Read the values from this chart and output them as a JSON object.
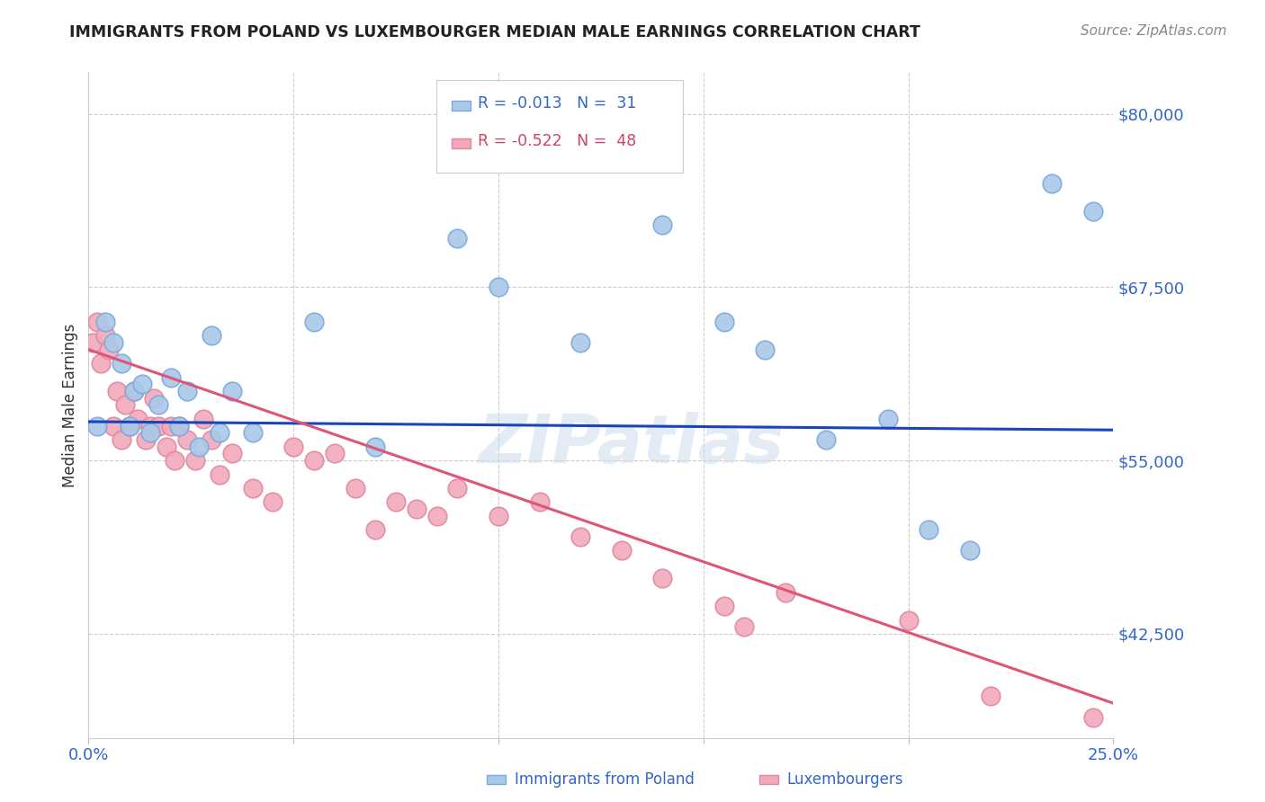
{
  "title": "IMMIGRANTS FROM POLAND VS LUXEMBOURGER MEDIAN MALE EARNINGS CORRELATION CHART",
  "source": "Source: ZipAtlas.com",
  "ylabel": "Median Male Earnings",
  "xlim": [
    0.0,
    25.0
  ],
  "ylim": [
    35000,
    83000
  ],
  "yticks": [
    42500,
    55000,
    67500,
    80000
  ],
  "ytick_labels": [
    "$42,500",
    "$55,000",
    "$67,500",
    "$80,000"
  ],
  "xticks": [
    0.0,
    5.0,
    10.0,
    15.0,
    20.0,
    25.0
  ],
  "xtick_labels": [
    "0.0%",
    "",
    "",
    "",
    "",
    "25.0%"
  ],
  "legend1_R": "R = -0.013",
  "legend1_N": "N =  31",
  "legend2_R": "R = -0.522",
  "legend2_N": "N =  48",
  "blue_color": "#aac8e8",
  "pink_color": "#f2aabb",
  "blue_edge_color": "#7aaadd",
  "pink_edge_color": "#e088a0",
  "blue_line_color": "#1a44bb",
  "pink_line_color": "#e05575",
  "watermark": "ZIPatlas",
  "blue_x": [
    0.2,
    0.4,
    0.6,
    0.8,
    1.0,
    1.1,
    1.3,
    1.5,
    1.7,
    2.0,
    2.2,
    2.4,
    2.7,
    3.0,
    3.2,
    3.5,
    4.0,
    5.5,
    7.0,
    9.0,
    10.0,
    12.0,
    14.0,
    15.5,
    16.5,
    18.0,
    19.5,
    20.5,
    21.5,
    23.5,
    24.5
  ],
  "blue_y": [
    57500,
    65000,
    63500,
    62000,
    57500,
    60000,
    60500,
    57000,
    59000,
    61000,
    57500,
    60000,
    56000,
    64000,
    57000,
    60000,
    57000,
    65000,
    56000,
    71000,
    67500,
    63500,
    72000,
    65000,
    63000,
    56500,
    58000,
    50000,
    48500,
    75000,
    73000
  ],
  "pink_x": [
    0.1,
    0.2,
    0.3,
    0.4,
    0.5,
    0.6,
    0.7,
    0.8,
    0.9,
    1.0,
    1.1,
    1.2,
    1.4,
    1.5,
    1.6,
    1.7,
    1.9,
    2.0,
    2.1,
    2.2,
    2.4,
    2.6,
    2.8,
    3.0,
    3.2,
    3.5,
    4.0,
    4.5,
    5.0,
    5.5,
    6.0,
    6.5,
    7.0,
    7.5,
    8.0,
    8.5,
    9.0,
    10.0,
    11.0,
    12.0,
    13.0,
    14.0,
    15.5,
    16.0,
    17.0,
    20.0,
    22.0,
    24.5
  ],
  "pink_y": [
    63500,
    65000,
    62000,
    64000,
    63000,
    57500,
    60000,
    56500,
    59000,
    57500,
    60000,
    58000,
    56500,
    57500,
    59500,
    57500,
    56000,
    57500,
    55000,
    57500,
    56500,
    55000,
    58000,
    56500,
    54000,
    55500,
    53000,
    52000,
    56000,
    55000,
    55500,
    53000,
    50000,
    52000,
    51500,
    51000,
    53000,
    51000,
    52000,
    49500,
    48500,
    46500,
    44500,
    43000,
    45500,
    43500,
    38000,
    36500
  ],
  "blue_trend_x": [
    0.0,
    25.0
  ],
  "blue_trend_y": [
    57800,
    57200
  ],
  "pink_trend_x": [
    0.0,
    25.0
  ],
  "pink_trend_y": [
    63000,
    37500
  ]
}
